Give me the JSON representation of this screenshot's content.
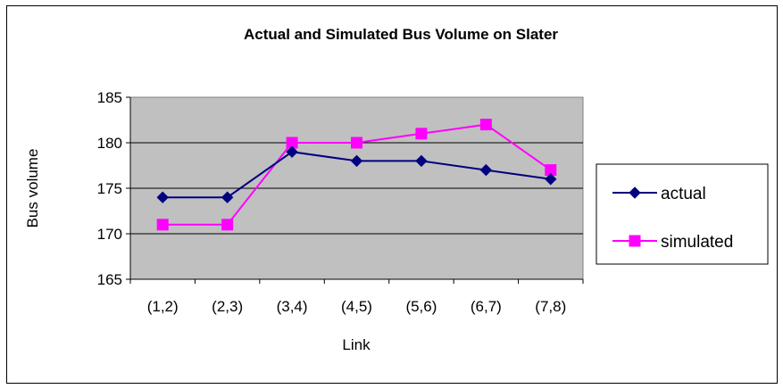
{
  "chart_data": {
    "type": "line",
    "title": "Actual and Simulated Bus Volume on Slater",
    "xlabel": "Link",
    "ylabel": "Bus volume",
    "categories": [
      "(1,2)",
      "(2,3)",
      "(3,4)",
      "(4,5)",
      "(5,6)",
      "(6,7)",
      "(7,8)"
    ],
    "ylim": [
      165,
      185
    ],
    "yticks": [
      165,
      170,
      175,
      180,
      185
    ],
    "grid": "horizontal",
    "legend": "right",
    "plot_background": "#c0c0c0",
    "series": [
      {
        "name": "actual",
        "values": [
          174,
          174,
          179,
          178,
          178,
          177,
          176
        ],
        "color": "#000080",
        "marker": "diamond"
      },
      {
        "name": "simulated",
        "values": [
          171,
          171,
          180,
          180,
          181,
          182,
          177
        ],
        "color": "#ff00ff",
        "marker": "square"
      }
    ]
  }
}
